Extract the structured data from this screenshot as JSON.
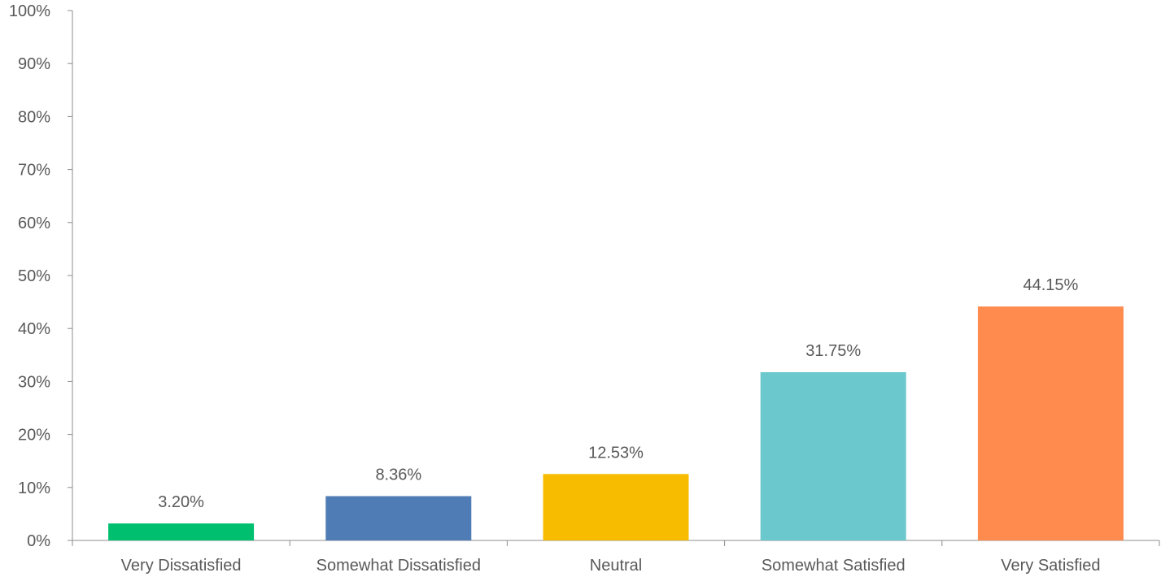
{
  "chart_data": {
    "type": "bar",
    "title": "",
    "xlabel": "",
    "ylabel": "",
    "categories": [
      "Very Dissatisfied",
      "Somewhat Dissatisfied",
      "Neutral",
      "Somewhat Satisfied",
      "Very Satisfied"
    ],
    "values": [
      3.2,
      8.36,
      12.53,
      31.75,
      44.15
    ],
    "data_labels": [
      "3.20%",
      "8.36%",
      "12.53%",
      "31.75%",
      "44.15%"
    ],
    "colors": [
      "#00bf6f",
      "#507cb6",
      "#f7bc00",
      "#6bc8cd",
      "#ff8b4f"
    ],
    "ylim": [
      0,
      100
    ],
    "yticks": [
      0,
      10,
      20,
      30,
      40,
      50,
      60,
      70,
      80,
      90,
      100
    ],
    "ytick_labels": [
      "0%",
      "10%",
      "20%",
      "30%",
      "40%",
      "50%",
      "60%",
      "70%",
      "80%",
      "90%",
      "100%"
    ],
    "grid": false,
    "legend": "none"
  }
}
